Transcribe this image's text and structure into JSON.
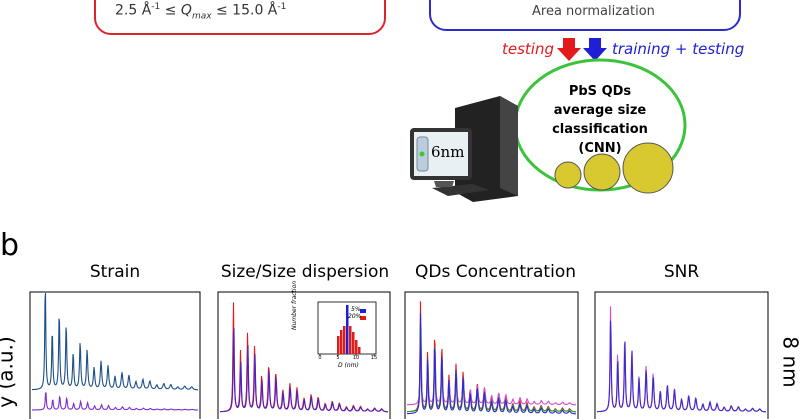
{
  "top_left_box": {
    "formula": [
      "2.5 Å",
      "-1",
      " ≤ Q",
      "max",
      " ≤ 15.0 Å",
      "-1"
    ]
  },
  "top_right_box": {
    "text": "Area normalization"
  },
  "arrows": {
    "testing": "testing",
    "training": "training + testing"
  },
  "classifier": {
    "lines": [
      "PbS QDs",
      "average size",
      "classification",
      "(CNN)"
    ]
  },
  "monitor": {
    "text": "6nm"
  },
  "panel_b": {
    "letter": "b",
    "y_label": "y (a.u.)",
    "side_label": "8 nm",
    "panels": [
      "Strain",
      "Size/Size dispersion",
      "QDs Concentration",
      "SNR"
    ],
    "inset": {
      "y_label": "Number fraction",
      "x_label": "D (nm)",
      "legend": [
        "5%",
        "20%"
      ],
      "xticks": [
        0,
        5,
        10,
        15
      ]
    }
  }
}
